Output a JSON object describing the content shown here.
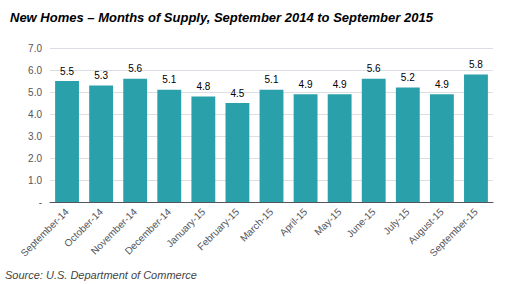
{
  "chart_data": {
    "type": "bar",
    "title": "New Homes – Months of Supply, September 2014 to September 2015",
    "categories": [
      "September-14",
      "October-14",
      "November-14",
      "December-14",
      "January-15",
      "February-15",
      "March-15",
      "April-15",
      "May-15",
      "June-15",
      "July-15",
      "August-15",
      "September-15"
    ],
    "values": [
      5.5,
      5.3,
      5.6,
      5.1,
      4.8,
      4.5,
      5.1,
      4.9,
      4.9,
      5.6,
      5.2,
      4.9,
      5.8
    ],
    "color": "#29a0aa",
    "ylim": [
      0,
      7.0
    ],
    "yticks": [
      {
        "value": 0.0,
        "label": "-"
      },
      {
        "value": 1.0,
        "label": "1.0"
      },
      {
        "value": 2.0,
        "label": "2.0"
      },
      {
        "value": 3.0,
        "label": "3.0"
      },
      {
        "value": 4.0,
        "label": "4.0"
      },
      {
        "value": 5.0,
        "label": "5.0"
      },
      {
        "value": 6.0,
        "label": "6.0"
      },
      {
        "value": 7.0,
        "label": "7.0"
      }
    ],
    "grid": true,
    "data_labels": true,
    "annotations": [
      "Source: U.S. Department of Commerce"
    ]
  }
}
